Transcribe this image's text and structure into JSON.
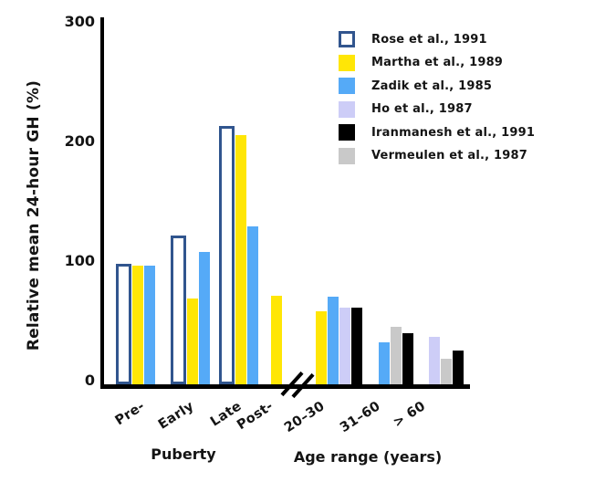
{
  "chart_data": {
    "type": "bar",
    "title": "",
    "ylabel": "Relative mean 24-hour GH (%)",
    "xlabel": "",
    "ylim": [
      0,
      300
    ],
    "yticks": [
      0,
      100,
      200,
      300
    ],
    "grid": false,
    "legend_position": "upper right",
    "x_sections": [
      {
        "label": "Puberty",
        "categories": [
          "Pre-",
          "Early",
          "Late",
          "Post-"
        ]
      },
      {
        "label": "Age range (years)",
        "categories": [
          "20–30",
          "31–60",
          "> 60"
        ]
      }
    ],
    "axis_break_between": [
      "Post-",
      "20–30"
    ],
    "series": [
      {
        "key": "rose",
        "label": "Rose et al., 1991",
        "style": "outlined",
        "color": "#ffffff",
        "border_color": "#31558e"
      },
      {
        "key": "martha",
        "label": "Martha et al., 1989",
        "style": "solid",
        "color": "#ffe606"
      },
      {
        "key": "zadik",
        "label": "Zadik et al., 1985",
        "style": "solid",
        "color": "#55aaf7"
      },
      {
        "key": "ho",
        "label": "Ho et al., 1987",
        "style": "solid",
        "color": "#cdcdf7"
      },
      {
        "key": "iranmanesh",
        "label": "Iranmanesh et al., 1991",
        "style": "solid",
        "color": "#000000"
      },
      {
        "key": "vermeulen",
        "label": "Vermeulen et al., 1987",
        "style": "solid",
        "color": "#c9c9c9"
      }
    ],
    "groups": [
      {
        "category": "Pre-",
        "bars": [
          {
            "series": "rose",
            "value": 98
          },
          {
            "series": "martha",
            "value": 96
          },
          {
            "series": "zadik",
            "value": 96
          }
        ]
      },
      {
        "category": "Early",
        "bars": [
          {
            "series": "rose",
            "value": 121
          },
          {
            "series": "martha",
            "value": 69
          },
          {
            "series": "zadik",
            "value": 108
          }
        ]
      },
      {
        "category": "Late",
        "bars": [
          {
            "series": "rose",
            "value": 213
          },
          {
            "series": "martha",
            "value": 205
          },
          {
            "series": "zadik",
            "value": 129
          }
        ]
      },
      {
        "category": "Post-",
        "bars": [
          {
            "series": "martha",
            "value": 71
          }
        ]
      },
      {
        "category": "20–30",
        "bars": [
          {
            "series": "martha",
            "value": 58
          },
          {
            "series": "zadik",
            "value": 70
          },
          {
            "series": "ho",
            "value": 61
          },
          {
            "series": "iranmanesh",
            "value": 61
          }
        ]
      },
      {
        "category": "31–60",
        "bars": [
          {
            "series": "zadik",
            "value": 32
          },
          {
            "series": "vermeulen",
            "value": 45
          },
          {
            "series": "iranmanesh",
            "value": 40
          }
        ]
      },
      {
        "category": "> 60",
        "bars": [
          {
            "series": "ho",
            "value": 37
          },
          {
            "series": "vermeulen",
            "value": 18
          },
          {
            "series": "iranmanesh",
            "value": 25
          }
        ]
      }
    ],
    "colors": {
      "axis": "#000000",
      "text": "#141414",
      "background": "#ffffff"
    }
  }
}
